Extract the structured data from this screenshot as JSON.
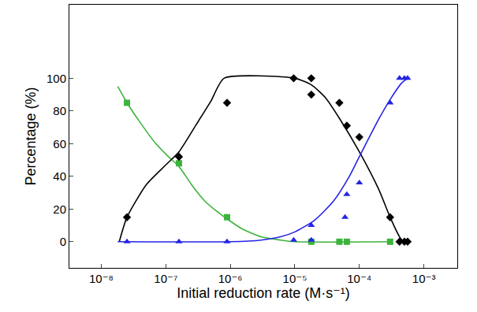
{
  "chart_data": {
    "type": "scatter",
    "x_label": "Initial reduction rate (M·s⁻¹)",
    "y_label": "Percentage (%)",
    "log": "x",
    "grid": false,
    "xlim": [
      3.2e-09,
      0.0033
    ],
    "xticks": [
      {
        "value": 1e-08,
        "label": "10⁻⁸"
      },
      {
        "value": 1e-07,
        "label": "10⁻⁷"
      },
      {
        "value": 1e-06,
        "label": "10⁻⁶"
      },
      {
        "value": 1e-05,
        "label": "10⁻⁵"
      },
      {
        "value": 0.0001,
        "label": "10⁻⁴"
      },
      {
        "value": 0.001,
        "label": "10⁻³"
      }
    ],
    "ylim": [
      -16,
      145
    ],
    "yticks": [
      0,
      20,
      40,
      60,
      80,
      100
    ],
    "series": [
      {
        "type": "line",
        "color": "#3cb43c",
        "line_style": "solid",
        "x": [
          1.8e-08,
          2.5e-08,
          4e-08,
          7e-08,
          1.1e-07,
          1.6e-07,
          2.5e-07,
          4e-07,
          6e-07,
          8.9e-07,
          1.5e-06,
          3e-06,
          6e-06,
          1e-05,
          0.0003
        ],
        "values": [
          95,
          85,
          73,
          60,
          52,
          46,
          35,
          25,
          19,
          14,
          8,
          3,
          1,
          0,
          0
        ]
      },
      {
        "type": "line",
        "color": "#000000",
        "line_style": "solid",
        "x": [
          1.9e-08,
          2.5e-08,
          5e-08,
          1e-07,
          1.6e-07,
          3e-07,
          5e-07,
          8e-07,
          1e-05,
          1.8e-05,
          3e-05,
          5e-05,
          0.0001,
          0.0002,
          0.0003,
          0.00042,
          0.00048
        ],
        "values": [
          0,
          15,
          35,
          47,
          55,
          72,
          86,
          100,
          100,
          96,
          88,
          75,
          55,
          32,
          15,
          3,
          0
        ]
      },
      {
        "type": "line",
        "color": "#2424e6",
        "line_style": "solid",
        "x": [
          1.8e-08,
          1e-06,
          3e-06,
          6e-06,
          1e-05,
          2e-05,
          4e-05,
          7e-05,
          0.0001,
          0.0002,
          0.0003,
          0.00045,
          0.00056
        ],
        "values": [
          0,
          0,
          1,
          3,
          6,
          13,
          25,
          40,
          52,
          75,
          87,
          97,
          100
        ]
      },
      {
        "type": "scatter",
        "color": "#3cb43c",
        "marker": "square",
        "x": [
          2.5e-08,
          1.6e-07,
          8.9e-07,
          1.8e-05,
          4.9e-05,
          6.4e-05,
          0.0003
        ],
        "values": [
          85,
          48,
          15,
          0,
          0,
          0,
          0
        ]
      },
      {
        "type": "scatter",
        "color": "#000000",
        "marker": "diamond",
        "x": [
          2.5e-08,
          1.6e-07,
          8.9e-07,
          9.6e-06,
          1.8e-05,
          1.8e-05,
          4.9e-05,
          6.4e-05,
          0.0001,
          0.0003,
          0.00042,
          0.0005,
          0.00056
        ],
        "values": [
          15,
          52,
          85,
          100,
          100,
          90,
          85,
          71,
          64,
          15,
          0,
          0,
          0
        ]
      },
      {
        "type": "scatter",
        "color": "#2424e6",
        "marker": "triangle-up",
        "x": [
          2.5e-08,
          1.6e-07,
          8.9e-07,
          9.6e-06,
          1.8e-05,
          1.8e-05,
          6e-05,
          6.4e-05,
          0.0001,
          0.0003,
          0.00042,
          0.0005,
          0.00056
        ],
        "values": [
          0,
          0,
          0,
          1,
          1,
          10,
          15,
          29,
          36,
          85,
          100,
          100,
          100
        ]
      }
    ]
  }
}
